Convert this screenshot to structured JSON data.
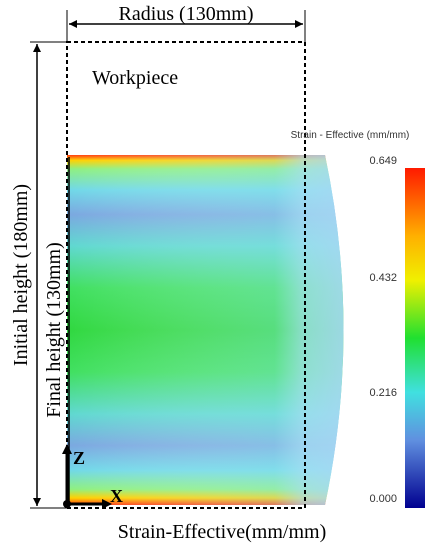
{
  "radius_label": "Radius (130mm)",
  "workpiece_label": "Workpiece",
  "initial_height_label": "Initial height (180mm)",
  "final_height_label": "Final height (130mm)",
  "axes": {
    "z": "Z",
    "x": "X"
  },
  "colorbar": {
    "title": "Strain - Effective (mm/mm)",
    "labels": [
      "0.649",
      "0.432",
      "0.216",
      "0.000"
    ]
  },
  "caption": "Strain-Effective(mm/mm)"
}
